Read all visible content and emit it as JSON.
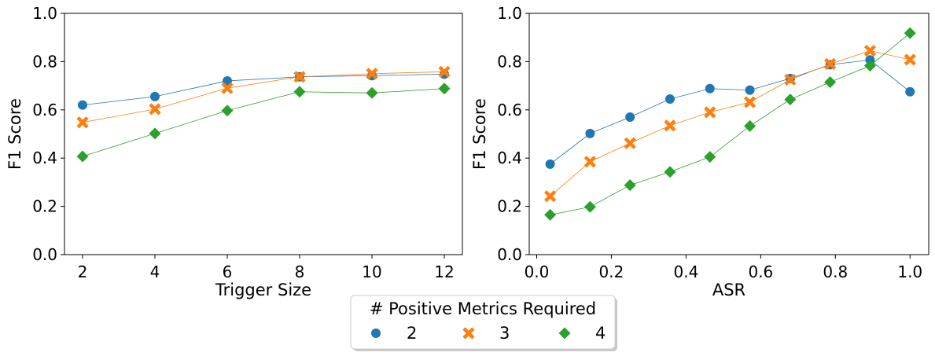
{
  "chart_data": [
    {
      "type": "line",
      "title": "",
      "xlabel": "Trigger Size",
      "ylabel": "F1 Score",
      "xlim": [
        1.5,
        12.5
      ],
      "ylim": [
        0.0,
        1.0
      ],
      "xticks": [
        2,
        4,
        6,
        8,
        10,
        12
      ],
      "xtick_labels": [
        "2",
        "4",
        "6",
        "8",
        "10",
        "12"
      ],
      "yticks": [
        0.0,
        0.2,
        0.4,
        0.6,
        0.8,
        1.0
      ],
      "ytick_labels": [
        "0.0",
        "0.2",
        "0.4",
        "0.6",
        "0.8",
        "1.0"
      ],
      "x": [
        2,
        4,
        6,
        8,
        10,
        12
      ],
      "series": [
        {
          "name": "2",
          "marker": "circle",
          "color": "#1f77b4",
          "values": [
            0.62,
            0.655,
            0.72,
            0.737,
            0.742,
            0.748
          ]
        },
        {
          "name": "3",
          "marker": "x",
          "color": "#ff7f0e",
          "values": [
            0.548,
            0.603,
            0.69,
            0.737,
            0.75,
            0.758
          ]
        },
        {
          "name": "4",
          "marker": "diamond",
          "color": "#2ca02c",
          "values": [
            0.407,
            0.502,
            0.597,
            0.675,
            0.67,
            0.688
          ]
        }
      ]
    },
    {
      "type": "line",
      "title": "",
      "xlabel": "ASR",
      "ylabel": "F1 Score",
      "xlim": [
        -0.02,
        1.05
      ],
      "ylim": [
        0.0,
        1.0
      ],
      "xticks": [
        0.0,
        0.2,
        0.4,
        0.6,
        0.8,
        1.0
      ],
      "xtick_labels": [
        "0.0",
        "0.2",
        "0.4",
        "0.6",
        "0.8",
        "1.0"
      ],
      "yticks": [
        0.0,
        0.2,
        0.4,
        0.6,
        0.8,
        1.0
      ],
      "ytick_labels": [
        "0.0",
        "0.2",
        "0.4",
        "0.6",
        "0.8",
        "1.0"
      ],
      "x": [
        0.036,
        0.143,
        0.25,
        0.357,
        0.464,
        0.571,
        0.679,
        0.786,
        0.893,
        1.0
      ],
      "series": [
        {
          "name": "2",
          "marker": "circle",
          "color": "#1f77b4",
          "values": [
            0.375,
            0.502,
            0.57,
            0.645,
            0.688,
            0.682,
            0.73,
            0.787,
            0.807,
            0.675
          ]
        },
        {
          "name": "3",
          "marker": "x",
          "color": "#ff7f0e",
          "values": [
            0.242,
            0.385,
            0.462,
            0.535,
            0.59,
            0.632,
            0.725,
            0.79,
            0.845,
            0.808
          ]
        },
        {
          "name": "4",
          "marker": "diamond",
          "color": "#2ca02c",
          "values": [
            0.165,
            0.198,
            0.288,
            0.343,
            0.405,
            0.533,
            0.643,
            0.715,
            0.783,
            0.918
          ]
        }
      ]
    }
  ],
  "legend": {
    "title": "# Positive Metrics Required",
    "placement": "bottom-center",
    "entries": [
      {
        "label": "2",
        "marker": "circle",
        "color": "#1f77b4"
      },
      {
        "label": "3",
        "marker": "x",
        "color": "#ff7f0e"
      },
      {
        "label": "4",
        "marker": "diamond",
        "color": "#2ca02c"
      }
    ]
  }
}
